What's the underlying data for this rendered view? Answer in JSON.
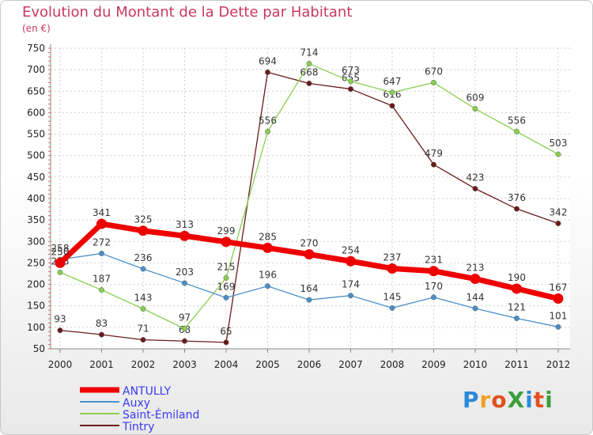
{
  "header": {
    "title": "Evolution du Montant de la Dette par Habitant",
    "subtitle": "(en €)"
  },
  "logo": {
    "text": "ProXiti",
    "colors": [
      "#2a8ad8",
      "#f0a020",
      "#e05020",
      "#3aa03a",
      "#2a8ad8",
      "#e05020",
      "#3aa03a"
    ]
  },
  "chart_data": {
    "type": "line",
    "title": "Evolution du Montant de la Dette par Habitant",
    "subtitle": "(en €)",
    "x": [
      "2000",
      "2001",
      "2002",
      "2003",
      "2004",
      "2005",
      "2006",
      "2007",
      "2008",
      "2009",
      "2010",
      "2011",
      "2012"
    ],
    "ylim": [
      50,
      750
    ],
    "yticks": [
      50,
      100,
      150,
      200,
      250,
      300,
      350,
      400,
      450,
      500,
      550,
      600,
      650,
      700,
      750
    ],
    "grid": true,
    "legend_position": "bottom-left",
    "series": [
      {
        "name": "ANTULLY",
        "color": "#ee0000",
        "values": [
          250,
          341,
          325,
          313,
          299,
          285,
          270,
          254,
          237,
          231,
          213,
          190,
          167
        ]
      },
      {
        "name": "Auxy",
        "color": "#4a8fc8",
        "values": [
          258,
          272,
          236,
          203,
          169,
          196,
          164,
          174,
          145,
          170,
          144,
          121,
          101
        ]
      },
      {
        "name": "Saint-Émiland",
        "color": "#88d050",
        "values": [
          228,
          187,
          143,
          97,
          215,
          556,
          714,
          673,
          647,
          670,
          609,
          556,
          503
        ]
      },
      {
        "name": "Tintry",
        "color": "#6a1a1a",
        "values": [
          93,
          83,
          71,
          68,
          65,
          694,
          668,
          655,
          616,
          479,
          423,
          376,
          342
        ]
      }
    ]
  }
}
